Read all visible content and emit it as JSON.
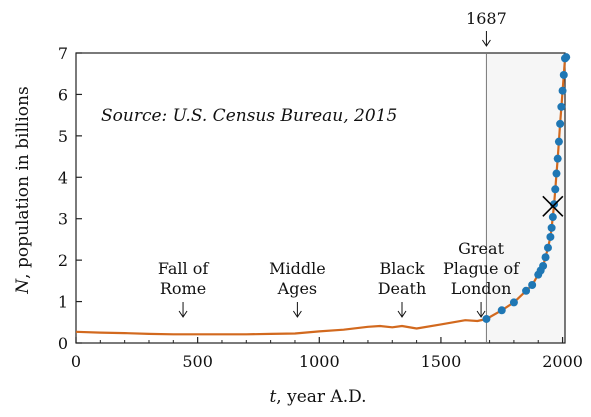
{
  "chart_data": {
    "type": "line",
    "source_note": "Source: U.S. Census Bureau, 2015",
    "xlabel_var": "t",
    "xlabel_rest": ", year A.D.",
    "ylabel_var": "N",
    "ylabel_rest": ", population in billions",
    "xlim": [
      0,
      2010
    ],
    "ylim": [
      0,
      7
    ],
    "x_ticks": [
      0,
      500,
      1000,
      1500,
      2000
    ],
    "y_ticks": [
      0,
      1,
      2,
      3,
      4,
      5,
      6,
      7
    ],
    "grid": false,
    "colors": {
      "line": "#d2691e",
      "marker": "#1f77b4",
      "axes": "#222222",
      "shade": "#f6f6f6"
    },
    "series": [
      {
        "x": [
          0,
          100,
          200,
          300,
          400,
          500,
          600,
          700,
          800,
          900,
          1000,
          1100,
          1200,
          1250,
          1300,
          1340,
          1400,
          1500,
          1600,
          1650,
          1687
        ],
        "y": [
          0.27,
          0.25,
          0.24,
          0.22,
          0.21,
          0.21,
          0.21,
          0.21,
          0.22,
          0.23,
          0.28,
          0.32,
          0.39,
          0.41,
          0.38,
          0.41,
          0.35,
          0.45,
          0.55,
          0.53,
          0.58
        ]
      },
      {
        "x": [
          1687,
          1750,
          1800,
          1850,
          1875,
          1900,
          1910,
          1920,
          1930,
          1940,
          1950,
          1955,
          1960,
          1965,
          1970,
          1975,
          1980,
          1985,
          1990,
          1995,
          2000,
          2005,
          2010,
          2015
        ],
        "y": [
          0.58,
          0.79,
          0.98,
          1.26,
          1.4,
          1.65,
          1.75,
          1.86,
          2.07,
          2.3,
          2.56,
          2.78,
          3.04,
          3.35,
          3.71,
          4.09,
          4.45,
          4.86,
          5.29,
          5.7,
          6.09,
          6.47,
          6.87,
          6.9
        ]
      }
    ],
    "shaded_from_x": 1687,
    "vertical_line": {
      "x": 1687,
      "label": "1687"
    },
    "cross_marker": {
      "x": 1960,
      "y": 3.3
    },
    "annotations": [
      {
        "id": "fall-of-rome",
        "lines": [
          "Fall of",
          "Rome"
        ],
        "x": 440
      },
      {
        "id": "middle-ages",
        "lines": [
          "Middle",
          "Ages"
        ],
        "x": 910
      },
      {
        "id": "black-death",
        "lines": [
          "Black",
          "Death"
        ],
        "x": 1340
      },
      {
        "id": "great-plague",
        "lines": [
          "Great",
          "Plague of",
          "London"
        ],
        "x": 1665
      }
    ]
  }
}
